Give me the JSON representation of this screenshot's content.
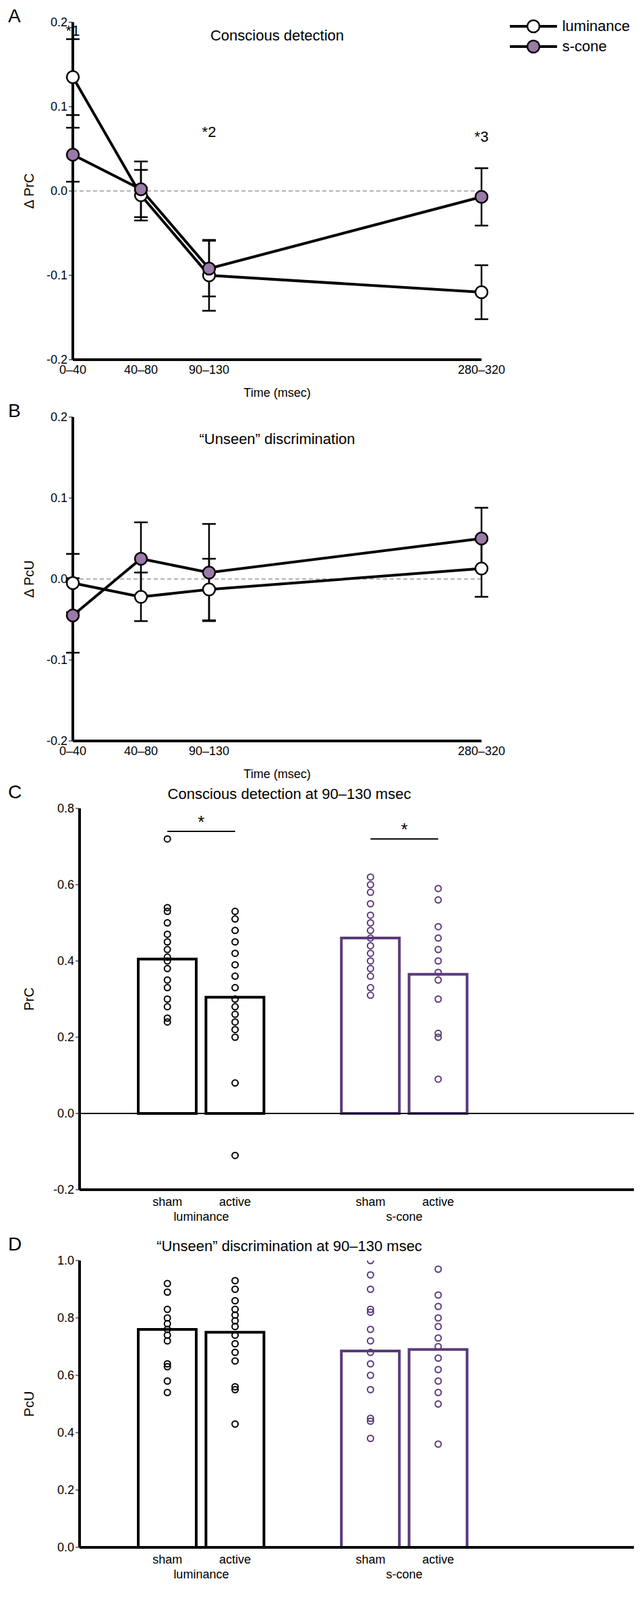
{
  "chart_data": [
    {
      "panel": "A",
      "type": "line",
      "title": "Conscious detection",
      "x_label": "Time (msec)",
      "y_label": "Δ PrC",
      "categories": [
        "0–40",
        "40–80",
        "90–130",
        null,
        null,
        null,
        "280–320"
      ],
      "ylim": [
        -0.2,
        0.2
      ],
      "yticks": [
        -0.2,
        -0.1,
        {
          "value": 0,
          "label": "0.0"
        },
        0.1,
        0.2
      ],
      "baseline": 0,
      "legend": "upper right",
      "series": [
        {
          "name": "luminance",
          "color": "#ffffff",
          "marker": "circle",
          "values": [
            0.135,
            -0.005,
            -0.1,
            null,
            null,
            null,
            -0.12
          ],
          "error": [
            0.045,
            0.03,
            0.042,
            null,
            null,
            null,
            0.032
          ]
        },
        {
          "name": "s-cone",
          "color": "#9a7aa8",
          "marker": "circle",
          "values": [
            0.043,
            0.002,
            -0.092,
            null,
            null,
            null,
            -0.007
          ],
          "error": [
            0.032,
            0.033,
            0.033,
            null,
            null,
            null,
            0.034
          ]
        }
      ],
      "annotations": [
        {
          "text": "*1",
          "x": "0–40",
          "y": 0.19
        },
        {
          "text": "*2",
          "x": "90–130",
          "y": 0.07
        },
        {
          "text": "*3",
          "x": "280–320",
          "y": 0.065
        }
      ]
    },
    {
      "panel": "B",
      "type": "line",
      "title": "“Unseen” discrimination",
      "x_label": "Time (msec)",
      "y_label": "Δ PcU",
      "categories": [
        "0–40",
        "40–80",
        "90–130",
        null,
        null,
        null,
        "280–320"
      ],
      "ylim": [
        -0.2,
        0.2
      ],
      "yticks": [
        -0.2,
        -0.1,
        {
          "value": 0,
          "label": "0.0"
        },
        0.1,
        0.2
      ],
      "baseline": 0,
      "series": [
        {
          "name": "luminance",
          "color": "#ffffff",
          "marker": "circle",
          "values": [
            -0.005,
            -0.022,
            -0.013,
            null,
            null,
            null,
            0.013
          ],
          "error": [
            0.036,
            0.03,
            0.038,
            null,
            null,
            null,
            0.035
          ]
        },
        {
          "name": "s-cone",
          "color": "#9a7aa8",
          "marker": "circle",
          "values": [
            -0.045,
            0.025,
            0.008,
            null,
            null,
            null,
            0.05
          ],
          "error": [
            0.046,
            0.045,
            0.06,
            null,
            null,
            null,
            0.038
          ]
        }
      ]
    },
    {
      "panel": "C",
      "type": "bar",
      "title": "Conscious detection at 90–130 msec",
      "y_label": "PrC",
      "categories": [
        "sham",
        "active",
        null,
        "sham",
        "active"
      ],
      "groups": [
        {
          "label": "luminance",
          "span": [
            0,
            1
          ]
        },
        {
          "label": "s-cone",
          "span": [
            3,
            4
          ]
        }
      ],
      "ylim": [
        -0.2,
        0.8
      ],
      "yticks": [
        -0.2,
        {
          "value": 0,
          "label": "0.0"
        },
        0.2,
        0.4,
        0.6,
        0.8
      ],
      "baseline": 0,
      "values": [
        0.405,
        0.305,
        null,
        0.46,
        0.365
      ],
      "colors": [
        "#000000",
        "#000000",
        null,
        "#5b3b7b",
        "#5b3b7b"
      ],
      "points": [
        [
          0.72,
          0.54,
          0.53,
          0.5,
          0.47,
          0.45,
          0.43,
          0.41,
          0.4,
          0.38,
          0.35,
          0.33,
          0.3,
          0.28,
          0.25,
          0.24
        ],
        [
          0.53,
          0.51,
          0.48,
          0.45,
          0.42,
          0.39,
          0.36,
          0.33,
          0.3,
          0.28,
          0.26,
          0.24,
          0.22,
          0.2,
          0.08,
          -0.11
        ],
        null,
        [
          0.62,
          0.6,
          0.58,
          0.55,
          0.52,
          0.5,
          0.48,
          0.46,
          0.44,
          0.42,
          0.4,
          0.38,
          0.36,
          0.33,
          0.31
        ],
        [
          0.59,
          0.56,
          0.49,
          0.46,
          0.43,
          0.4,
          0.37,
          0.35,
          0.3,
          0.21,
          0.2,
          0.09
        ]
      ],
      "significance": [
        {
          "span": [
            0,
            1
          ],
          "y": 0.74,
          "label": "*"
        },
        {
          "span": [
            3,
            4
          ],
          "y": 0.72,
          "label": "*"
        }
      ]
    },
    {
      "panel": "D",
      "type": "bar",
      "title": "“Unseen” discrimination at 90–130 msec",
      "y_label": "PcU",
      "categories": [
        "sham",
        "active",
        null,
        "sham",
        "active"
      ],
      "groups": [
        {
          "label": "luminance",
          "span": [
            0,
            1
          ]
        },
        {
          "label": "s-cone",
          "span": [
            3,
            4
          ]
        }
      ],
      "ylim": [
        0,
        1
      ],
      "yticks": [
        {
          "value": 0,
          "label": "0.0"
        },
        0.2,
        0.4,
        0.6,
        0.8,
        {
          "value": 1,
          "label": "1.0"
        }
      ],
      "values": [
        0.76,
        0.75,
        null,
        0.685,
        0.69
      ],
      "colors": [
        "#000000",
        "#000000",
        null,
        "#5b3b7b",
        "#5b3b7b"
      ],
      "points": [
        [
          0.92,
          0.89,
          0.83,
          0.8,
          0.78,
          0.76,
          0.74,
          0.72,
          0.64,
          0.63,
          0.58,
          0.54
        ],
        [
          0.93,
          0.9,
          0.86,
          0.83,
          0.81,
          0.79,
          0.77,
          0.74,
          0.71,
          0.68,
          0.65,
          0.56,
          0.55,
          0.43
        ],
        null,
        [
          1.0,
          0.95,
          0.9,
          0.83,
          0.82,
          0.76,
          0.72,
          0.68,
          0.64,
          0.6,
          0.55,
          0.45,
          0.44,
          0.38
        ],
        [
          0.97,
          0.88,
          0.84,
          0.8,
          0.77,
          0.73,
          0.7,
          0.66,
          0.62,
          0.58,
          0.54,
          0.5,
          0.36
        ]
      ]
    }
  ]
}
